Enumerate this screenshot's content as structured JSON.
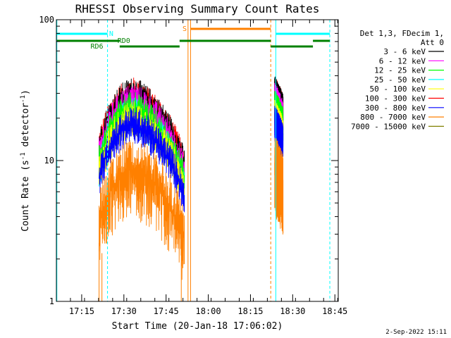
{
  "chart_data": {
    "type": "line",
    "title": "RHESSI Observing Summary Count Rates",
    "xlabel": "Start Time (20-Jan-18 17:06:02)",
    "ylabel_main": "Count Rate (s",
    "ylabel_sup1": "-1",
    "ylabel_mid": " detector",
    "ylabel_sup2": "-1",
    "ylabel_end": ")",
    "yscale": "log",
    "ylim": [
      1,
      100
    ],
    "xlim_minutes": [
      17.1,
      18.77
    ],
    "y_ticks": [
      {
        "value": 1,
        "label": "1"
      },
      {
        "value": 10,
        "label": "10"
      },
      {
        "value": 100,
        "label": "100"
      }
    ],
    "x_ticks": [
      {
        "value": 17.25,
        "label": "17:15"
      },
      {
        "value": 17.5,
        "label": "17:30"
      },
      {
        "value": 17.75,
        "label": "17:45"
      },
      {
        "value": 18.0,
        "label": "18:00"
      },
      {
        "value": 18.25,
        "label": "18:15"
      },
      {
        "value": 18.5,
        "label": "18:30"
      },
      {
        "value": 18.75,
        "label": "18:45"
      }
    ],
    "legend_header": [
      "Det 1,3, FDecim 1,",
      "Att 0"
    ],
    "series": [
      {
        "name": "3 - 6 keV",
        "color": "#000000"
      },
      {
        "name": "6 - 12 keV",
        "color": "#ff00ff"
      },
      {
        "name": "12 - 25 keV",
        "color": "#00ff00"
      },
      {
        "name": "25 - 50 keV",
        "color": "#00ffff"
      },
      {
        "name": "50 - 100 keV",
        "color": "#ffff00"
      },
      {
        "name": "100 - 300 keV",
        "color": "#ff0000"
      },
      {
        "name": "300 - 800 keV",
        "color": "#0000ff"
      },
      {
        "name": "800 - 7000 keV",
        "color": "#ff8000"
      },
      {
        "name": "7000 - 15000 keV",
        "color": "#808000"
      }
    ],
    "annotations": {
      "night_label": "N",
      "saa_label": "S",
      "decim_labels": [
        "RD0",
        "RD6"
      ]
    },
    "footer_date": "2-Sep-2022 15:11"
  }
}
